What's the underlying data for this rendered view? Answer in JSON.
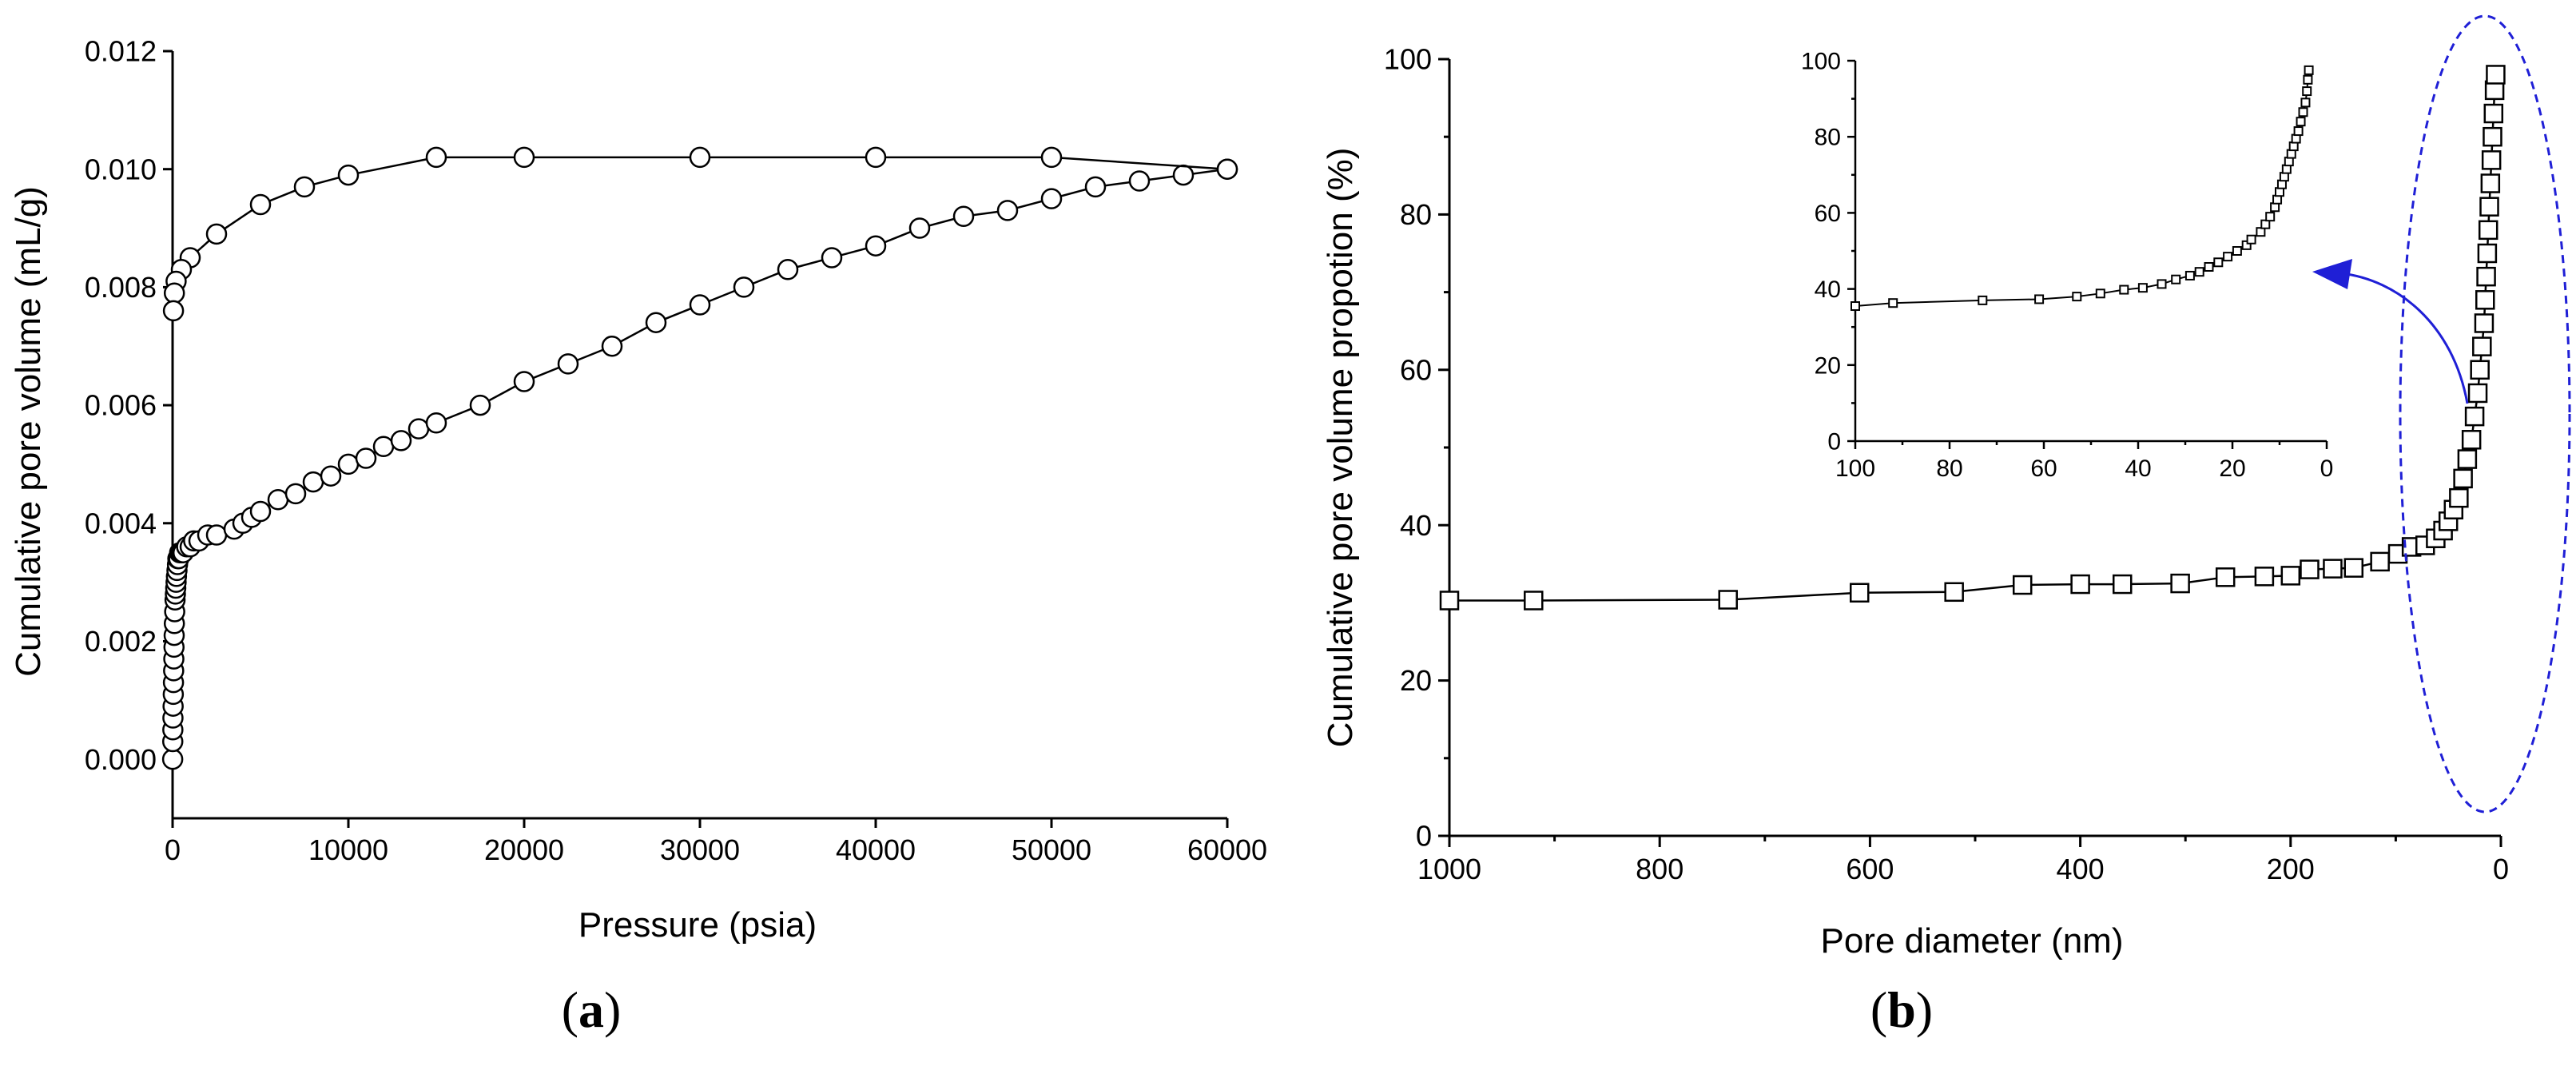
{
  "chart_data": [
    {
      "id": "a",
      "type": "scatter",
      "panel_label": "a",
      "xlabel": "Pressure (psia)",
      "ylabel": "Cumulative pore volume (mL/g)",
      "xlim": [
        0,
        60000
      ],
      "ylim": [
        -0.001,
        0.012
      ],
      "x_ticks": [
        0,
        10000,
        20000,
        30000,
        40000,
        50000,
        60000
      ],
      "y_ticks": [
        0.0,
        0.002,
        0.004,
        0.006,
        0.008,
        0.01,
        0.012
      ],
      "x_tick_labels": [
        "0",
        "10000",
        "20000",
        "30000",
        "40000",
        "50000",
        "60000"
      ],
      "y_tick_labels": [
        "0.000",
        "0.002",
        "0.004",
        "0.006",
        "0.008",
        "0.010",
        "0.012"
      ],
      "marker": "open-circle",
      "series": [
        {
          "x": [
            5,
            10,
            15,
            20,
            30,
            40,
            50,
            60,
            70,
            80,
            90,
            100,
            120,
            140,
            160,
            180,
            200,
            220,
            250,
            280,
            300,
            350,
            400,
            500,
            600,
            800,
            1000,
            1200,
            1500,
            2000,
            2500,
            3500,
            4000,
            4500,
            5000,
            6000,
            7000,
            8000,
            9000,
            10000,
            11000,
            12000,
            13000,
            14000,
            15000,
            17500,
            20000,
            22500,
            25000,
            27500,
            30000,
            32500,
            35000,
            37500,
            40000,
            42500,
            45000,
            47500,
            50000,
            52500,
            55000,
            57500,
            60000
          ],
          "y": [
            0.0,
            0.0003,
            0.0005,
            0.0007,
            0.0009,
            0.0011,
            0.0013,
            0.0015,
            0.0017,
            0.0019,
            0.0021,
            0.0023,
            0.0025,
            0.0027,
            0.0028,
            0.0029,
            0.003,
            0.0031,
            0.0032,
            0.0033,
            0.0034,
            0.0034,
            0.0035,
            0.0035,
            0.0035,
            0.0036,
            0.0036,
            0.0037,
            0.0037,
            0.0038,
            0.0038,
            0.0039,
            0.004,
            0.0041,
            0.0042,
            0.0044,
            0.0045,
            0.0047,
            0.0048,
            0.005,
            0.0051,
            0.0053,
            0.0054,
            0.0056,
            0.0057,
            0.006,
            0.0064,
            0.0067,
            0.007,
            0.0074,
            0.0077,
            0.008,
            0.0083,
            0.0085,
            0.0087,
            0.009,
            0.0092,
            0.0093,
            0.0095,
            0.0097,
            0.0098,
            0.0099,
            0.01
          ]
        },
        {
          "x": [
            60000,
            50000,
            40000,
            30000,
            20000,
            15000,
            10000,
            7500,
            5000,
            2500,
            1000,
            500,
            200,
            100,
            50
          ],
          "y": [
            0.01,
            0.0102,
            0.0102,
            0.0102,
            0.0102,
            0.0102,
            0.0099,
            0.0097,
            0.0094,
            0.0089,
            0.0085,
            0.0083,
            0.0081,
            0.0079,
            0.0076
          ]
        }
      ]
    },
    {
      "id": "b",
      "type": "line",
      "panel_label": "b",
      "xlabel": "Pore diameter (nm)",
      "ylabel": "Cumulative pore volume propotion (%)",
      "xlim": [
        1000,
        0
      ],
      "ylim": [
        0,
        100
      ],
      "x_ticks": [
        1000,
        800,
        600,
        400,
        200,
        0
      ],
      "y_ticks": [
        0,
        20,
        40,
        60,
        80,
        100
      ],
      "x_tick_labels": [
        "1000",
        "800",
        "600",
        "400",
        "200",
        "0"
      ],
      "y_tick_labels": [
        "0",
        "20",
        "40",
        "60",
        "80",
        "100"
      ],
      "marker": "open-square",
      "series": [
        {
          "x": [
            1000,
            920,
            735,
            610,
            520,
            455,
            400,
            360,
            305,
            262,
            225,
            200,
            182,
            160,
            140,
            115,
            98,
            85,
            72,
            62,
            55,
            50,
            45,
            40,
            36,
            32,
            28,
            25,
            22,
            20,
            18,
            16,
            15,
            14,
            13,
            12,
            11,
            10,
            9,
            8,
            7,
            6,
            5
          ],
          "y": [
            30.3,
            30.3,
            30.4,
            31.3,
            31.4,
            32.3,
            32.4,
            32.4,
            32.5,
            33.3,
            33.4,
            33.5,
            34.3,
            34.4,
            34.5,
            35.3,
            36.3,
            37.2,
            37.4,
            38.3,
            39.3,
            40.5,
            42,
            43.5,
            46,
            48.5,
            51,
            54,
            57,
            60,
            63,
            66,
            69,
            72,
            75,
            78,
            81,
            84,
            87,
            90,
            93,
            96,
            98
          ]
        }
      ],
      "inset": {
        "xlim": [
          100,
          0
        ],
        "ylim": [
          0,
          100
        ],
        "x_ticks": [
          100,
          80,
          60,
          40,
          20,
          0
        ],
        "y_ticks": [
          0,
          20,
          40,
          60,
          80,
          100
        ],
        "x_tick_labels": [
          "100",
          "80",
          "60",
          "40",
          "20",
          "0"
        ],
        "y_tick_labels": [
          "0",
          "20",
          "40",
          "60",
          "80",
          "100"
        ],
        "x": [
          100,
          92,
          73,
          61,
          53,
          48,
          43,
          39,
          35,
          32,
          29,
          27,
          25,
          23,
          21,
          19,
          17,
          16,
          14,
          13,
          12,
          11,
          10.5,
          10,
          9.5,
          9,
          8.5,
          8,
          7.5,
          7,
          6.5,
          6,
          5.5,
          5,
          4.5,
          4.2,
          4,
          3.8
        ],
        "y": [
          35.5,
          36.3,
          37,
          37.3,
          38,
          38.8,
          39.8,
          40.3,
          41.3,
          42.5,
          43.5,
          44.5,
          45.8,
          47,
          48.5,
          50,
          51.5,
          53,
          55,
          57,
          59,
          61.5,
          63.5,
          65.5,
          67.5,
          69.5,
          71.5,
          73.5,
          75.5,
          77.5,
          79.5,
          81.5,
          84,
          86.5,
          89,
          92,
          95,
          97.5
        ]
      },
      "annotations": [
        "dashed blue ellipse around the steep region near 0 nm",
        "blue curved arrow pointing to the inset"
      ]
    }
  ],
  "colors": {
    "axis": "#000000",
    "marker_fill": "#ffffff",
    "annotation": "#1f1fd6"
  }
}
